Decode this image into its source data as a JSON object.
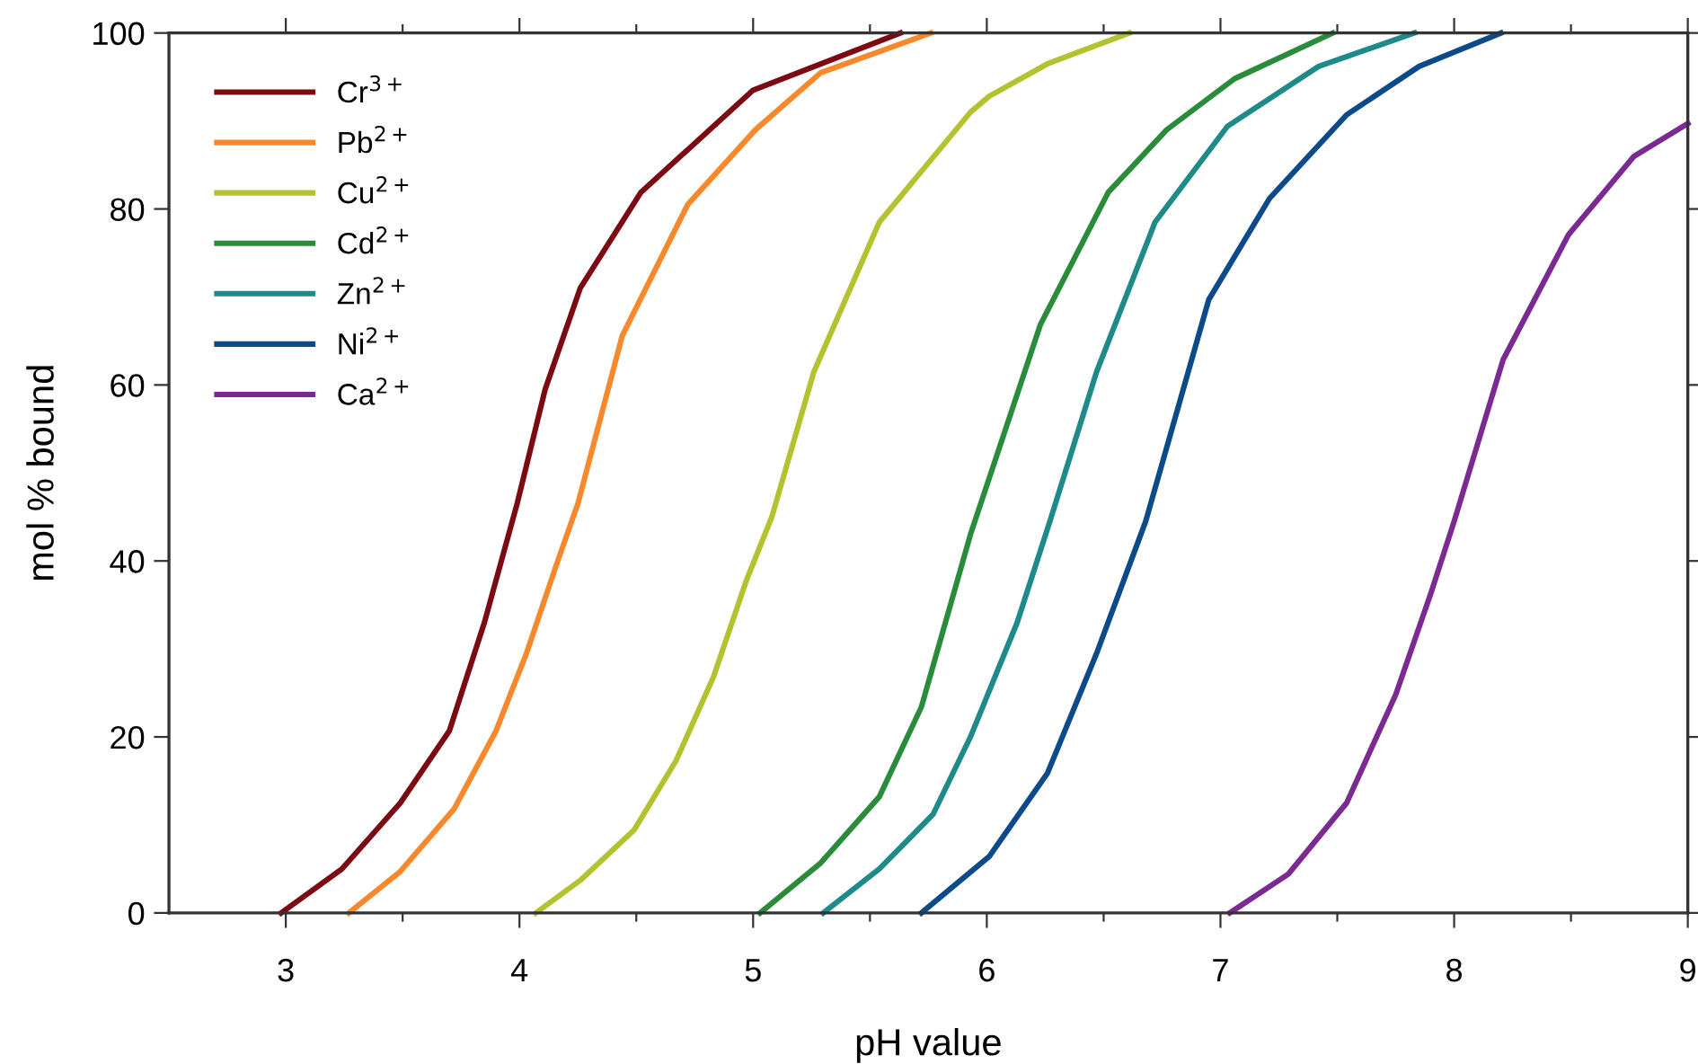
{
  "chart_data": {
    "type": "line",
    "xlabel": "pH value",
    "ylabel": "mol % bound",
    "xlim": [
      2.5,
      9
    ],
    "ylim": [
      0,
      100
    ],
    "xticks": [
      3,
      {
        "value": 3.5,
        "label": null
      },
      4,
      {
        "value": 4.5,
        "label": null
      },
      5,
      {
        "value": 5.5,
        "label": null
      },
      6,
      {
        "value": 6.5,
        "label": null
      },
      7,
      {
        "value": 7.5,
        "label": null
      },
      8,
      {
        "value": 8.5,
        "label": null
      },
      9
    ],
    "yticks": [
      0,
      20,
      40,
      60,
      80,
      100
    ],
    "grid": false,
    "legend": "top left",
    "marker": "none",
    "line_style": "solid",
    "series": [
      {
        "name": "Cr$^{3+}$",
        "color": "#7b0a12",
        "x": [
          2.98,
          3.24,
          3.49,
          3.7,
          3.85,
          3.99,
          4.11,
          4.26,
          4.52,
          5.0,
          5.63
        ],
        "values": [
          0,
          5,
          12.5,
          20.7,
          33,
          46.5,
          59.5,
          71,
          81.9,
          93.5,
          100
        ]
      },
      {
        "name": "Pb$^{2+}$",
        "color": "#f7882b",
        "x": [
          3.27,
          3.49,
          3.72,
          3.9,
          4.03,
          4.16,
          4.25,
          4.44,
          4.72,
          5.01,
          5.29,
          5.76
        ],
        "values": [
          0,
          4.7,
          11.8,
          20.7,
          29.5,
          39.7,
          46.5,
          65.6,
          80.5,
          89,
          95.5,
          100
        ]
      },
      {
        "name": "Cu$^{2+}$",
        "color": "#b5c230",
        "x": [
          4.07,
          4.26,
          4.49,
          4.67,
          4.83,
          4.97,
          5.08,
          5.26,
          5.54,
          5.93,
          6.01,
          6.26,
          6.61
        ],
        "values": [
          0,
          3.7,
          9.4,
          17.3,
          26.8,
          37.7,
          45,
          61.5,
          78.5,
          91,
          92.8,
          96.5,
          100
        ]
      },
      {
        "name": "Cd$^{2+}$",
        "color": "#2a8c3a",
        "x": [
          5.03,
          5.29,
          5.54,
          5.72,
          5.93,
          6.23,
          6.52,
          6.77,
          7.06,
          7.48
        ],
        "values": [
          0,
          5.7,
          13.2,
          23.4,
          43,
          66.9,
          81.9,
          89,
          94.8,
          100
        ]
      },
      {
        "name": "Zn$^{2+}$",
        "color": "#1f8a8a",
        "x": [
          5.3,
          5.54,
          5.77,
          5.93,
          6.13,
          6.27,
          6.47,
          6.72,
          7.03,
          7.42,
          7.83
        ],
        "values": [
          0,
          5,
          11.2,
          20,
          33,
          44.5,
          61.5,
          78.5,
          89.4,
          96.2,
          100
        ]
      },
      {
        "name": "Ni$^{2+}$",
        "color": "#0d4a8a",
        "x": [
          5.72,
          6.01,
          6.26,
          6.47,
          6.68,
          6.95,
          7.21,
          7.54,
          7.85,
          8.2
        ],
        "values": [
          0,
          6.4,
          15.9,
          29.5,
          44.5,
          69.7,
          81.2,
          90.7,
          96.2,
          100
        ]
      },
      {
        "name": "Ca$^{2+}$",
        "color": "#7a2a90",
        "x": [
          7.04,
          7.29,
          7.54,
          7.75,
          7.9,
          8.0,
          8.21,
          8.49,
          8.77,
          9.0
        ],
        "values": [
          0,
          4.4,
          12.5,
          24.8,
          36.3,
          44.5,
          62.9,
          77.1,
          86,
          89.7
        ]
      }
    ]
  }
}
